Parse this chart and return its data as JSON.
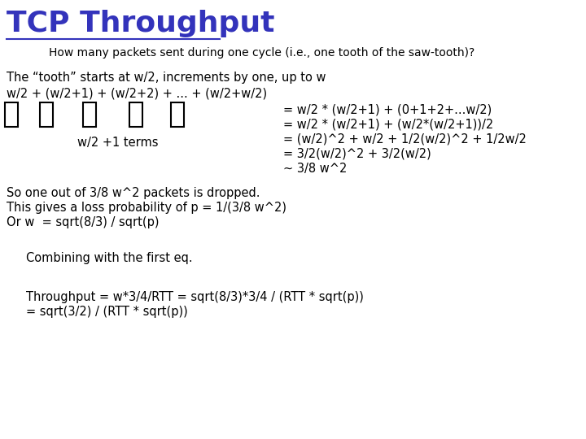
{
  "title": "TCP Throughput",
  "subtitle": "How many packets sent during one cycle (i.e., one tooth of the saw-tooth)?",
  "line1": "The “tooth” starts at w/2, increments by one, up to w",
  "line2": "w/2 + (w/2+1) + (w/2+2) + ... + (w/2+w/2)",
  "label_below": "w/2 +1 terms",
  "right_eq1": "= w/2 * (w/2+1) + (0+1+2+...w/2)",
  "right_eq2": "= w/2 * (w/2+1) + (w/2*(w/2+1))/2",
  "right_eq3": "= (w/2)^2 + w/2 + 1/2(w/2)^2 + 1/2w/2",
  "right_eq4": "= 3/2(w/2)^2 + 3/2(w/2)",
  "right_eq5": "~ 3/8 w^2",
  "block1_line1": "So one out of 3/8 w^2 packets is dropped.",
  "block1_line2": "This gives a loss probability of p = 1/(3/8 w^2)",
  "block1_line3": "Or w  = sqrt(8/3) / sqrt(p)",
  "combining": "Combining with the first eq.",
  "throughput1": "Throughput = w*3/4/RTT = sqrt(8/3)*3/4 / (RTT * sqrt(p))",
  "throughput2": "= sqrt(3/2) / (RTT * sqrt(p))",
  "title_color": "#3333bb",
  "text_color": "#000000",
  "bg_color": "#ffffff",
  "title_fontsize": 26,
  "subtitle_fontsize": 10,
  "body_fontsize": 10.5
}
